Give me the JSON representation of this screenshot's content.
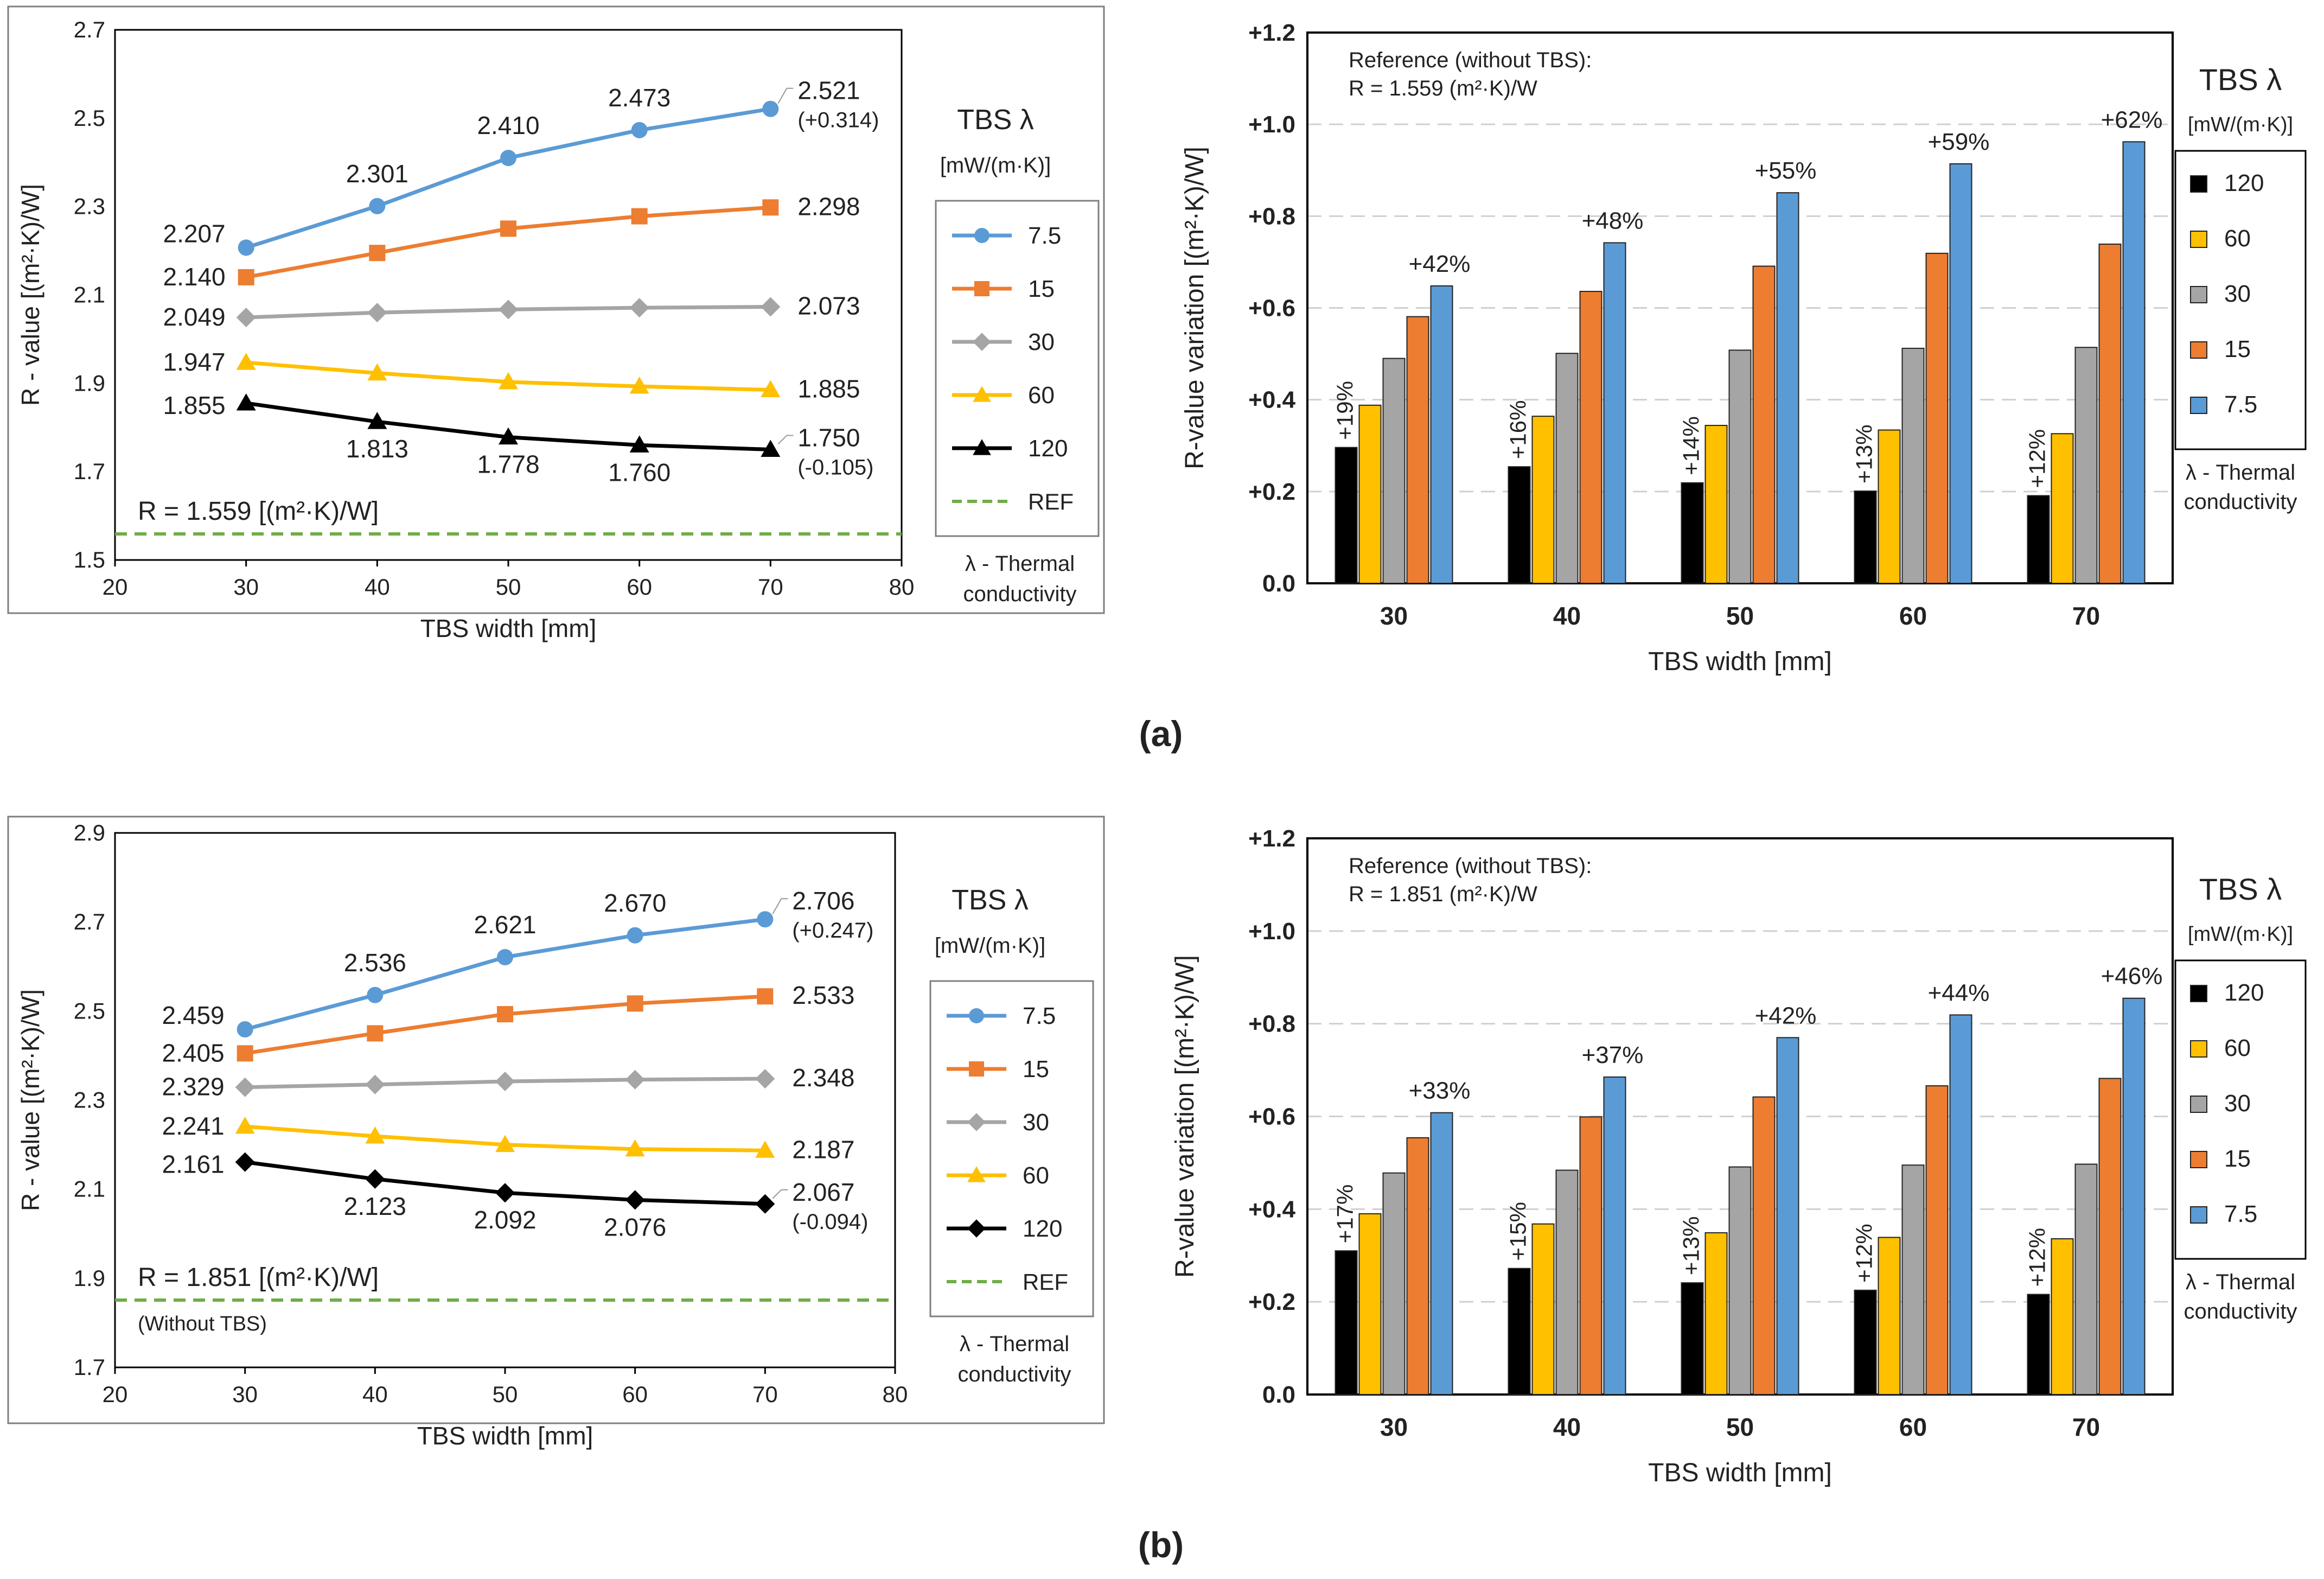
{
  "colors": {
    "s7_5": "#5b9bd5",
    "s15": "#ed7d31",
    "s30": "#a5a5a5",
    "s60": "#ffc000",
    "s120": "#000000",
    "ref": "#70ad47"
  },
  "legend": {
    "title": "TBS λ",
    "unit": "[mW/(m·K)]",
    "note1": "λ - Thermal",
    "note2": "conductivity",
    "ref_label": "REF"
  },
  "panels": [
    {
      "label": "(a)",
      "line": {
        "ylabel": "R - value [(m²·K)/W]",
        "xlabel": "TBS width [mm]",
        "ref_text": "R = 1.559 [(m²·K)/W]",
        "ref_sub": ""
      },
      "bar": {
        "ylabel": "R-value variation [(m²·K)/W]",
        "xlabel": "TBS width [mm]",
        "ref1": "Reference (without TBS):",
        "ref2": "R = 1.559 (m²·K)/W"
      }
    },
    {
      "label": "(b)",
      "line": {
        "ylabel": "R - value [(m²·K)/W]",
        "xlabel": "TBS width [mm]",
        "ref_text": "R = 1.851 [(m²·K)/W]",
        "ref_sub": "(Without TBS)"
      },
      "bar": {
        "ylabel": "R-value variation [(m²·K)/W]",
        "xlabel": "TBS width [mm]",
        "ref1": "Reference (without TBS):",
        "ref2": "R = 1.851 (m²·K)/W"
      }
    }
  ],
  "chart_data": [
    {
      "type": "line",
      "panel": "a",
      "xlabel": "TBS width [mm]",
      "ylabel": "R - value [(m²·K)/W]",
      "xlim": [
        20,
        80
      ],
      "xticks": [
        "20",
        "30",
        "40",
        "50",
        "60",
        "70",
        "80"
      ],
      "ylim": [
        1.5,
        2.7
      ],
      "yticks": [
        "1.5",
        "1.7",
        "1.9",
        "2.1",
        "2.3",
        "2.5",
        "2.7"
      ],
      "x": [
        30,
        40,
        50,
        60,
        70
      ],
      "reference": {
        "name": "REF",
        "value": 1.559
      },
      "series": [
        {
          "name": "7.5",
          "marker": "circle",
          "values": [
            2.207,
            2.301,
            2.41,
            2.473,
            2.521
          ],
          "labels": [
            "2.207",
            "2.301",
            "2.410",
            "2.473",
            "2.521"
          ],
          "delta": "(+0.314)"
        },
        {
          "name": "15",
          "marker": "square",
          "values": [
            2.14,
            2.195,
            2.25,
            2.278,
            2.298
          ],
          "labels": [
            "2.140",
            "",
            "",
            "",
            "2.298"
          ],
          "delta": ""
        },
        {
          "name": "30",
          "marker": "diamond",
          "values": [
            2.049,
            2.06,
            2.067,
            2.071,
            2.073
          ],
          "labels": [
            "2.049",
            "",
            "",
            "",
            "2.073"
          ],
          "delta": ""
        },
        {
          "name": "60",
          "marker": "triangle",
          "values": [
            1.947,
            1.923,
            1.903,
            1.893,
            1.885
          ],
          "labels": [
            "1.947",
            "",
            "",
            "",
            "1.885"
          ],
          "delta": ""
        },
        {
          "name": "120",
          "marker": "triangle",
          "values": [
            1.855,
            1.813,
            1.778,
            1.76,
            1.75
          ],
          "labels": [
            "1.855",
            "1.813",
            "1.778",
            "1.760",
            "1.750"
          ],
          "delta": "(-0.105)"
        }
      ]
    },
    {
      "type": "bar",
      "panel": "a",
      "xlabel": "TBS width [mm]",
      "ylabel": "R-value variation [(m²·K)/W]",
      "categories": [
        "30",
        "40",
        "50",
        "60",
        "70"
      ],
      "ylim": [
        0,
        1.2
      ],
      "yticks": [
        "0.0",
        "+0.2",
        "+0.4",
        "+0.6",
        "+0.8",
        "+1.0",
        "+1.2"
      ],
      "series": [
        {
          "name": "120",
          "values": [
            0.296,
            0.254,
            0.219,
            0.201,
            0.191
          ]
        },
        {
          "name": "60",
          "values": [
            0.388,
            0.364,
            0.344,
            0.334,
            0.326
          ]
        },
        {
          "name": "30",
          "values": [
            0.49,
            0.501,
            0.508,
            0.512,
            0.514
          ]
        },
        {
          "name": "15",
          "values": [
            0.581,
            0.636,
            0.691,
            0.719,
            0.739
          ]
        },
        {
          "name": "7.5",
          "values": [
            0.648,
            0.742,
            0.851,
            0.914,
            0.962
          ]
        }
      ],
      "low_labels": [
        "+19%",
        "+16%",
        "+14%",
        "+13%",
        "+12%"
      ],
      "high_labels": [
        "+42%",
        "+48%",
        "+55%",
        "+59%",
        "+62%"
      ]
    },
    {
      "type": "line",
      "panel": "b",
      "xlabel": "TBS width [mm]",
      "ylabel": "R - value [(m²·K)/W]",
      "xlim": [
        20,
        80
      ],
      "xticks": [
        "20",
        "30",
        "40",
        "50",
        "60",
        "70",
        "80"
      ],
      "ylim": [
        1.7,
        2.9
      ],
      "yticks": [
        "1.7",
        "1.9",
        "2.1",
        "2.3",
        "2.5",
        "2.7",
        "2.9"
      ],
      "x": [
        30,
        40,
        50,
        60,
        70
      ],
      "reference": {
        "name": "REF",
        "value": 1.851
      },
      "series": [
        {
          "name": "7.5",
          "marker": "circle",
          "values": [
            2.459,
            2.536,
            2.621,
            2.67,
            2.706
          ],
          "labels": [
            "2.459",
            "2.536",
            "2.621",
            "2.670",
            "2.706"
          ],
          "delta": "(+0.247)"
        },
        {
          "name": "15",
          "marker": "square",
          "values": [
            2.405,
            2.45,
            2.493,
            2.517,
            2.533
          ],
          "labels": [
            "2.405",
            "",
            "",
            "",
            "2.533"
          ],
          "delta": ""
        },
        {
          "name": "30",
          "marker": "diamond",
          "values": [
            2.329,
            2.335,
            2.342,
            2.346,
            2.348
          ],
          "labels": [
            "2.329",
            "",
            "",
            "",
            "2.348"
          ],
          "delta": ""
        },
        {
          "name": "60",
          "marker": "triangle",
          "values": [
            2.241,
            2.219,
            2.2,
            2.19,
            2.187
          ],
          "labels": [
            "2.241",
            "",
            "",
            "",
            "2.187"
          ],
          "delta": ""
        },
        {
          "name": "120",
          "marker": "diamond",
          "values": [
            2.161,
            2.123,
            2.092,
            2.076,
            2.067
          ],
          "labels": [
            "2.161",
            "2.123",
            "2.092",
            "2.076",
            "2.067"
          ],
          "delta": "(-0.094)"
        }
      ]
    },
    {
      "type": "bar",
      "panel": "b",
      "xlabel": "TBS width [mm]",
      "ylabel": "R-value variation [(m²·K)/W]",
      "categories": [
        "30",
        "40",
        "50",
        "60",
        "70"
      ],
      "ylim": [
        0,
        1.2
      ],
      "yticks": [
        "0.0",
        "+0.2",
        "+0.4",
        "+0.6",
        "+0.8",
        "+1.0",
        "+1.2"
      ],
      "series": [
        {
          "name": "120",
          "values": [
            0.31,
            0.272,
            0.241,
            0.225,
            0.216
          ]
        },
        {
          "name": "60",
          "values": [
            0.39,
            0.368,
            0.349,
            0.339,
            0.336
          ]
        },
        {
          "name": "30",
          "values": [
            0.478,
            0.484,
            0.491,
            0.495,
            0.497
          ]
        },
        {
          "name": "15",
          "values": [
            0.554,
            0.599,
            0.642,
            0.666,
            0.682
          ]
        },
        {
          "name": "7.5",
          "values": [
            0.608,
            0.685,
            0.77,
            0.819,
            0.855
          ]
        }
      ],
      "low_labels": [
        "+17%",
        "+15%",
        "+13%",
        "+12%",
        "+12%"
      ],
      "high_labels": [
        "+33%",
        "+37%",
        "+42%",
        "+44%",
        "+46%"
      ]
    }
  ]
}
